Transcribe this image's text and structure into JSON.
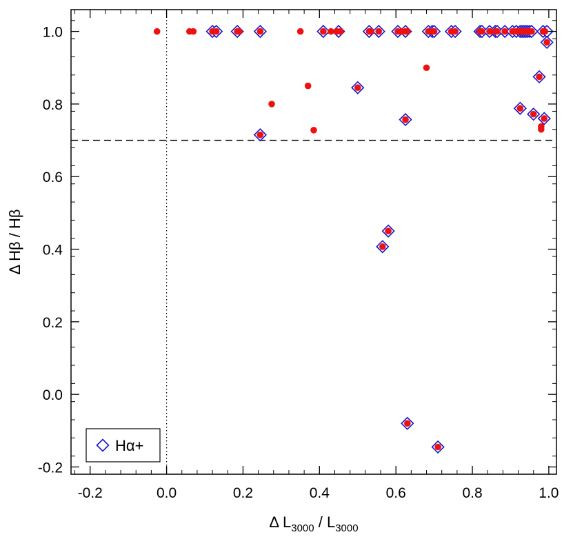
{
  "chart_data": {
    "type": "scatter",
    "title": "",
    "xlabel": {
      "prefix": "Δ L",
      "sub": "3000",
      "mid": " / L",
      "sub2": "3000"
    },
    "ylabel": {
      "text": "Δ Hβ / Hβ"
    },
    "xlim": [
      -0.25,
      1.02
    ],
    "ylim": [
      -0.22,
      1.06
    ],
    "xticks": [
      -0.2,
      0.0,
      0.2,
      0.4,
      0.6,
      0.8,
      1.0
    ],
    "xtick_labels": [
      "-0.2",
      "0.0",
      "0.2",
      "0.4",
      "0.6",
      "0.8",
      "1.0"
    ],
    "yticks": [
      -0.2,
      0.0,
      0.2,
      0.4,
      0.6,
      0.8,
      1.0
    ],
    "ytick_labels": [
      "-0.2",
      "0.0",
      "0.2",
      "0.4",
      "0.6",
      "0.8",
      "1.0"
    ],
    "reference_lines": {
      "horizontal_dashed_y": 0.7,
      "vertical_dotted_x": 0.0
    },
    "legend": {
      "placement": "bottom-left",
      "entries": [
        {
          "symbol": "open-diamond",
          "color": "#1515cc",
          "label": "Hα+"
        }
      ]
    },
    "series": [
      {
        "marker": "filled-circle",
        "color": "#ee1111",
        "points": [
          [
            -0.025,
            1.0
          ],
          [
            0.06,
            1.0
          ],
          [
            0.07,
            1.0
          ],
          [
            0.12,
            1.0
          ],
          [
            0.13,
            1.0
          ],
          [
            0.185,
            1.0
          ],
          [
            0.19,
            1.0
          ],
          [
            0.245,
            1.0
          ],
          [
            0.35,
            1.0
          ],
          [
            0.41,
            1.0
          ],
          [
            0.43,
            1.0
          ],
          [
            0.445,
            1.0
          ],
          [
            0.455,
            1.0
          ],
          [
            0.53,
            1.0
          ],
          [
            0.535,
            1.0
          ],
          [
            0.555,
            1.0
          ],
          [
            0.605,
            1.0
          ],
          [
            0.615,
            1.0
          ],
          [
            0.625,
            1.0
          ],
          [
            0.63,
            1.0
          ],
          [
            0.685,
            1.0
          ],
          [
            0.695,
            1.0
          ],
          [
            0.7,
            1.0
          ],
          [
            0.745,
            1.0
          ],
          [
            0.755,
            1.0
          ],
          [
            0.82,
            1.0
          ],
          [
            0.825,
            1.0
          ],
          [
            0.845,
            1.0
          ],
          [
            0.86,
            1.0
          ],
          [
            0.865,
            1.0
          ],
          [
            0.885,
            1.0
          ],
          [
            0.905,
            1.0
          ],
          [
            0.915,
            1.0
          ],
          [
            0.925,
            1.0
          ],
          [
            0.93,
            1.0
          ],
          [
            0.935,
            1.0
          ],
          [
            0.94,
            1.0
          ],
          [
            0.945,
            1.0
          ],
          [
            0.95,
            1.0
          ],
          [
            0.955,
            1.0
          ],
          [
            0.985,
            1.0
          ],
          [
            0.99,
            1.0
          ],
          [
            0.995,
            0.97
          ],
          [
            0.975,
            0.875
          ],
          [
            0.68,
            0.9
          ],
          [
            0.37,
            0.85
          ],
          [
            0.5,
            0.845
          ],
          [
            0.275,
            0.8
          ],
          [
            0.925,
            0.788
          ],
          [
            0.96,
            0.772
          ],
          [
            0.988,
            0.76
          ],
          [
            0.625,
            0.757
          ],
          [
            0.98,
            0.738
          ],
          [
            0.98,
            0.73
          ],
          [
            0.385,
            0.728
          ],
          [
            0.245,
            0.715
          ],
          [
            0.58,
            0.45
          ],
          [
            0.565,
            0.407
          ],
          [
            0.63,
            -0.08
          ],
          [
            0.71,
            -0.145
          ]
        ]
      },
      {
        "name": "Hα+",
        "marker": "open-diamond",
        "color": "#1515cc",
        "points": [
          [
            0.12,
            1.0
          ],
          [
            0.13,
            1.0
          ],
          [
            0.185,
            1.0
          ],
          [
            0.245,
            1.0
          ],
          [
            0.41,
            1.0
          ],
          [
            0.45,
            1.0
          ],
          [
            0.53,
            1.0
          ],
          [
            0.555,
            1.0
          ],
          [
            0.605,
            1.0
          ],
          [
            0.625,
            1.0
          ],
          [
            0.685,
            1.0
          ],
          [
            0.695,
            1.0
          ],
          [
            0.7,
            1.0
          ],
          [
            0.745,
            1.0
          ],
          [
            0.755,
            1.0
          ],
          [
            0.82,
            1.0
          ],
          [
            0.825,
            1.0
          ],
          [
            0.845,
            1.0
          ],
          [
            0.86,
            1.0
          ],
          [
            0.865,
            1.0
          ],
          [
            0.885,
            1.0
          ],
          [
            0.905,
            1.0
          ],
          [
            0.915,
            1.0
          ],
          [
            0.925,
            1.0
          ],
          [
            0.93,
            1.0
          ],
          [
            0.935,
            1.0
          ],
          [
            0.94,
            1.0
          ],
          [
            0.945,
            1.0
          ],
          [
            0.95,
            1.0
          ],
          [
            0.955,
            1.0
          ],
          [
            0.985,
            1.0
          ],
          [
            0.995,
            1.0
          ],
          [
            0.995,
            0.97
          ],
          [
            0.975,
            0.875
          ],
          [
            0.5,
            0.845
          ],
          [
            0.925,
            0.788
          ],
          [
            0.96,
            0.772
          ],
          [
            0.988,
            0.76
          ],
          [
            0.625,
            0.757
          ],
          [
            0.245,
            0.715
          ],
          [
            0.58,
            0.45
          ],
          [
            0.565,
            0.407
          ],
          [
            0.63,
            -0.08
          ],
          [
            0.71,
            -0.145
          ]
        ]
      }
    ]
  }
}
